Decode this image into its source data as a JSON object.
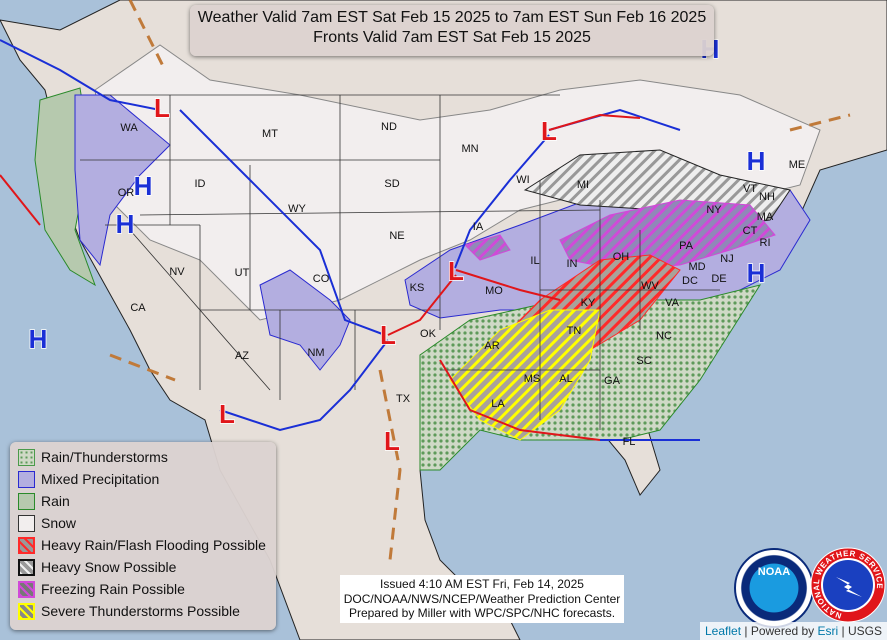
{
  "title": {
    "line1": "Weather Valid 7am EST Sat Feb 15 2025 to 7am EST Sun Feb 16 2025",
    "line2": "Fronts Valid 7am EST Sat Feb 15 2025"
  },
  "legend": [
    {
      "label": "Rain/Thunderstorms",
      "color": "#8fb88a"
    },
    {
      "label": "Mixed Precipitation",
      "color": "#b3aee0"
    },
    {
      "label": "Rain",
      "color": "#b6c9ae"
    },
    {
      "label": "Snow",
      "color": "#f2eeee"
    },
    {
      "label": "Heavy Rain/Flash Flooding Possible",
      "color": "#ff2a2a"
    },
    {
      "label": "Heavy Snow Possible",
      "color": "#222222"
    },
    {
      "label": "Freezing Rain Possible",
      "color": "#d04ad8"
    },
    {
      "label": "Severe Thunderstorms Possible",
      "color": "#ffff00"
    }
  ],
  "issued": {
    "line1": "Issued  4:10 AM EST Fri, Feb 14, 2025",
    "line2": "DOC/NOAA/NWS/NCEP/Weather Prediction Center",
    "line3": "Prepared by Miller with WPC/SPC/NHC forecasts."
  },
  "attribution": {
    "leaflet": "Leaflet",
    "sep1": " | Powered by ",
    "esri": "Esri",
    "sep2": " | USGS"
  },
  "logos": {
    "noaa": "NOAA",
    "nws": "NATIONAL WEATHER SERVICE"
  },
  "pressure_centers": {
    "high": "H",
    "low": "L"
  },
  "states": [
    "WA",
    "MT",
    "ND",
    "MN",
    "OR",
    "ID",
    "WY",
    "SD",
    "WI",
    "MI",
    "NY",
    "VT",
    "NH",
    "ME",
    "MA",
    "CT",
    "RI",
    "PA",
    "NJ",
    "DE",
    "MD",
    "DC",
    "NV",
    "UT",
    "CO",
    "NE",
    "IA",
    "IL",
    "IN",
    "OH",
    "WV",
    "VA",
    "KY",
    "KS",
    "MO",
    "CA",
    "AZ",
    "NM",
    "OK",
    "AR",
    "TN",
    "NC",
    "SC",
    "TX",
    "LA",
    "MS",
    "AL",
    "GA",
    "FL"
  ],
  "colors": {
    "ocean": "#a9c1d9",
    "land": "#e6dfd9",
    "cold_front": "#1a2fd6",
    "warm_front": "#e0161a",
    "trough": "#c07a3a"
  }
}
